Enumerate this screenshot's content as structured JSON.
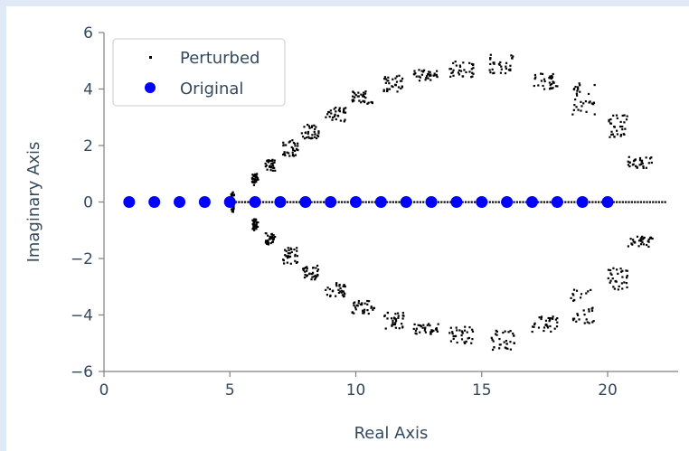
{
  "chart_data": {
    "type": "scatter",
    "title": "",
    "xlabel": "Real Axis",
    "ylabel": "Imaginary Axis",
    "xlim": [
      0,
      22.8
    ],
    "ylim": [
      -6,
      6
    ],
    "xticks": [
      0,
      5,
      10,
      15,
      20
    ],
    "yticks": [
      -6,
      -4,
      -2,
      0,
      2,
      4,
      6
    ],
    "xtick_labels": [
      "0",
      "5",
      "10",
      "15",
      "20"
    ],
    "ytick_labels": [
      "−6",
      "−4",
      "−2",
      "0",
      "2",
      "4",
      "6"
    ],
    "legend": {
      "placement": "upper-left",
      "entries": [
        "Perturbed",
        "Original"
      ]
    },
    "series": [
      {
        "name": "Original",
        "color": "#0000ff",
        "marker": "circle",
        "points": [
          [
            1,
            0
          ],
          [
            2,
            0
          ],
          [
            3,
            0
          ],
          [
            4,
            0
          ],
          [
            5,
            0
          ],
          [
            6,
            0
          ],
          [
            7,
            0
          ],
          [
            8,
            0
          ],
          [
            9,
            0
          ],
          [
            10,
            0
          ],
          [
            11,
            0
          ],
          [
            12,
            0
          ],
          [
            13,
            0
          ],
          [
            14,
            0
          ],
          [
            15,
            0
          ],
          [
            16,
            0
          ],
          [
            17,
            0
          ],
          [
            18,
            0
          ],
          [
            19,
            0
          ],
          [
            20,
            0
          ]
        ]
      },
      {
        "name": "Perturbed",
        "color": "#000000",
        "marker": "dot",
        "clusters": [
          [
            5.1,
            0.0,
            0.08,
            0.35
          ],
          [
            6.0,
            0.8,
            0.12,
            0.2
          ],
          [
            6.0,
            -0.8,
            0.12,
            0.2
          ],
          [
            6.6,
            1.3,
            0.2,
            0.2
          ],
          [
            6.6,
            -1.3,
            0.2,
            0.2
          ],
          [
            7.4,
            1.9,
            0.3,
            0.3
          ],
          [
            7.4,
            -1.9,
            0.3,
            0.3
          ],
          [
            8.2,
            2.5,
            0.35,
            0.25
          ],
          [
            8.2,
            -2.5,
            0.35,
            0.25
          ],
          [
            9.2,
            3.1,
            0.4,
            0.25
          ],
          [
            9.2,
            -3.1,
            0.4,
            0.25
          ],
          [
            10.3,
            3.7,
            0.45,
            0.25
          ],
          [
            10.3,
            -3.7,
            0.45,
            0.25
          ],
          [
            11.5,
            4.2,
            0.4,
            0.3
          ],
          [
            11.5,
            -4.2,
            0.4,
            0.3
          ],
          [
            12.8,
            4.5,
            0.5,
            0.2
          ],
          [
            12.8,
            -4.5,
            0.5,
            0.2
          ],
          [
            14.2,
            4.7,
            0.5,
            0.3
          ],
          [
            14.2,
            -4.7,
            0.5,
            0.3
          ],
          [
            15.8,
            4.9,
            0.5,
            0.35
          ],
          [
            15.8,
            -4.9,
            0.5,
            0.35
          ],
          [
            17.5,
            4.3,
            0.5,
            0.3
          ],
          [
            17.5,
            -4.3,
            0.5,
            0.3
          ],
          [
            19.0,
            3.7,
            0.5,
            0.6
          ],
          [
            19.0,
            -3.7,
            0.5,
            0.6
          ],
          [
            20.4,
            2.7,
            0.4,
            0.4
          ],
          [
            20.4,
            -2.7,
            0.4,
            0.4
          ],
          [
            21.3,
            1.4,
            0.5,
            0.2
          ],
          [
            21.3,
            -1.4,
            0.5,
            0.2
          ]
        ],
        "axis_line": [
          5.0,
          22.3
        ]
      }
    ]
  },
  "colors": {
    "axis": "#808080",
    "text": "#34495e",
    "original": "#0000ff",
    "perturbed": "#000000"
  }
}
